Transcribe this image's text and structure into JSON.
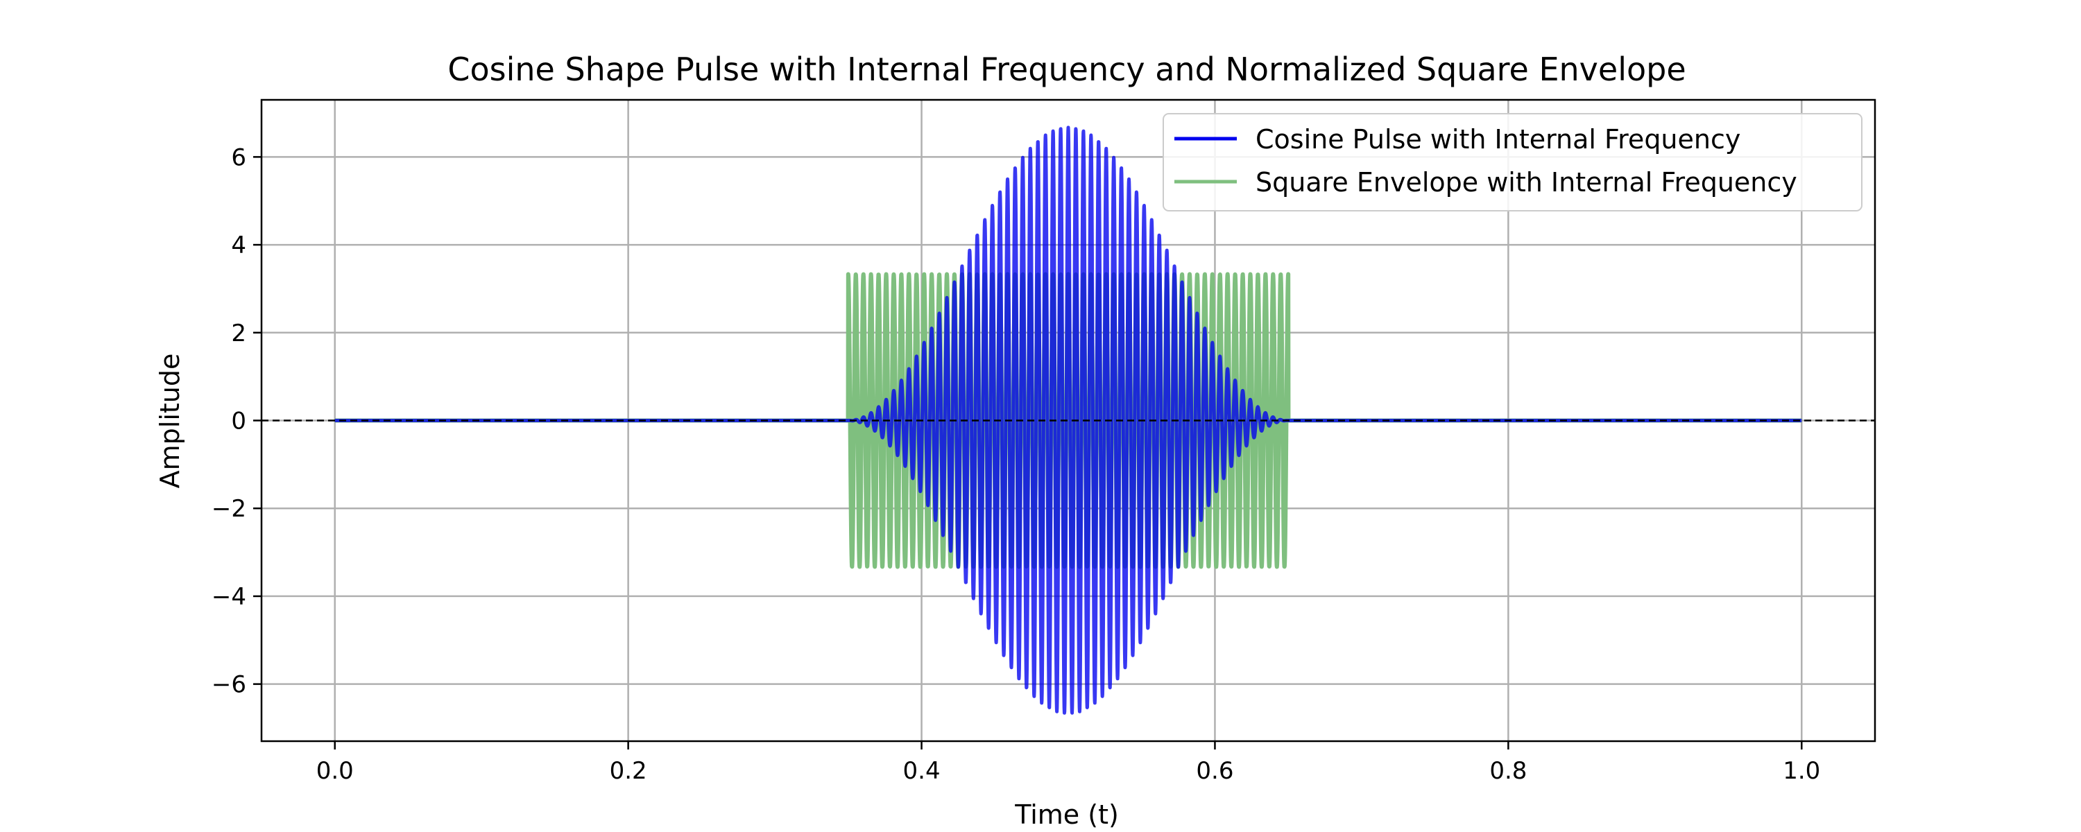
{
  "chart_data": {
    "type": "line",
    "title": "Cosine Shape Pulse with Internal Frequency and Normalized Square Envelope",
    "xlabel": "Time (t)",
    "ylabel": "Amplitude",
    "xlim": [
      -0.05,
      1.05
    ],
    "ylim": [
      -7.3,
      7.3
    ],
    "xticks": [
      0.0,
      0.2,
      0.4,
      0.6,
      0.8,
      1.0
    ],
    "xtick_labels": [
      "0.0",
      "0.2",
      "0.4",
      "0.6",
      "0.8",
      "1.0"
    ],
    "yticks": [
      -6,
      -4,
      -2,
      0,
      2,
      4,
      6
    ],
    "ytick_labels": [
      "−6",
      "−4",
      "−2",
      "0",
      "2",
      "4",
      "6"
    ],
    "grid": true,
    "legend_position": "top-right",
    "reference_line": {
      "y": 0,
      "style": "dashed",
      "color": "#000000"
    },
    "series": [
      {
        "name": "Cosine Pulse with Internal Frequency",
        "color": "#0000ee",
        "shape": "cosine-windowed carrier",
        "t_range": [
          0.0,
          1.0
        ],
        "pulse_start": 0.35,
        "pulse_end": 0.65,
        "peak_amplitude": 6.67,
        "carrier_cycles": 58
      },
      {
        "name": "Square Envelope with Internal Frequency",
        "color": "#7fbf7f",
        "shape": "square-windowed carrier",
        "t_range": [
          0.0,
          1.0
        ],
        "pulse_start": 0.35,
        "pulse_end": 0.65,
        "amplitude": 3.33,
        "carrier_cycles": 58
      }
    ]
  }
}
